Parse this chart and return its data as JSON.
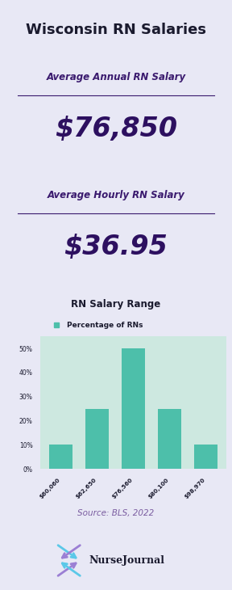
{
  "title": "Wisconsin RN Salaries",
  "title_color": "#1a1a2e",
  "box1_bg": "#d4c8e8",
  "box2_bg": "#d4c8e8",
  "chart_bg": "#cde8e0",
  "box1_label": "Average Annual RN Salary",
  "box1_value": "$76,850",
  "box2_label": "Average Hourly RN Salary",
  "box2_value": "$36.95",
  "label_color": "#3a1a6e",
  "value_color": "#2d1060",
  "chart_title": "RN Salary Range",
  "chart_legend": "Percentage of RNs",
  "chart_title_color": "#1a1a2e",
  "bar_color": "#4dbfaa",
  "bar_categories": [
    "$60,060",
    "$62,650",
    "$76,560",
    "$80,100",
    "$98,970"
  ],
  "bar_values": [
    10,
    25,
    50,
    25,
    10
  ],
  "ytick_labels": [
    "0%",
    "10%",
    "20%",
    "30%",
    "40%",
    "50%"
  ],
  "source_text": "Source: BLS, 2022",
  "source_color": "#7a5ca0",
  "logo_text": "NurseJournal",
  "logo_color": "#1a1a2e",
  "outer_bg": "#e8e8f5"
}
